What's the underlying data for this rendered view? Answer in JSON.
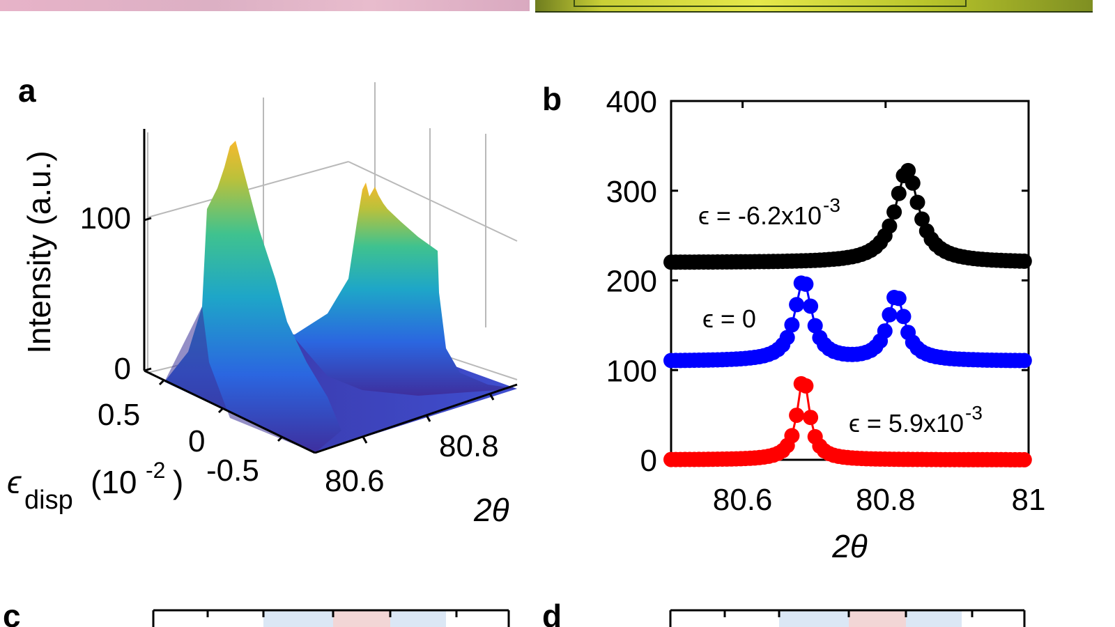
{
  "panel_labels": {
    "a": "a",
    "b": "b",
    "c": "c",
    "d": "d"
  },
  "chart_data": [
    {
      "type": "surface3d",
      "panel": "a",
      "zlabel": "Intensity (a.u.)",
      "ylabel_symbol": "ϵ",
      "ylabel_sub": "disp",
      "ylabel_unit_open": "(10",
      "ylabel_unit_exp": "-2",
      "ylabel_unit_close": ")",
      "xlabel": "2θ",
      "z_ticks": [
        "0",
        "100"
      ],
      "y_ticks": [
        "0.5",
        "0",
        "-0.5"
      ],
      "x_ticks": [
        "80.6",
        "80.8"
      ],
      "colormap": [
        "#3e2f9e",
        "#2b66e0",
        "#1ea6c8",
        "#3fc28f",
        "#bcc13a",
        "#f5b92e"
      ],
      "x": [
        80.5,
        81.0
      ],
      "y": [
        -0.6,
        0.6
      ],
      "zlim": [
        0,
        150
      ],
      "ridges": [
        {
          "peak_2theta": 80.68,
          "peak_intensity": 145
        },
        {
          "peak_2theta": 80.82,
          "peak_intensity": 120
        }
      ]
    },
    {
      "type": "scatter",
      "panel": "b",
      "xlabel": "2θ",
      "ylabel": "",
      "xlim": [
        80.5,
        81.0
      ],
      "ylim": [
        0,
        400
      ],
      "x_ticks": [
        "80.6",
        "80.8",
        "81"
      ],
      "y_ticks": [
        "0",
        "100",
        "200",
        "300",
        "400"
      ],
      "grid": false,
      "series": [
        {
          "name": "ϵ = -6.2x10",
          "exp": "-3",
          "color": "#000000",
          "baseline": 220,
          "peaks": [
            {
              "center": 80.83,
              "amplitude": 103,
              "width": 0.025
            }
          ]
        },
        {
          "name": "ϵ = 0",
          "exp": "",
          "color": "#0000ff",
          "baseline": 110,
          "peaks": [
            {
              "center": 80.685,
              "amplitude": 90,
              "width": 0.018
            },
            {
              "center": 80.815,
              "amplitude": 73,
              "width": 0.018
            }
          ]
        },
        {
          "name": "ϵ = 5.9x10",
          "exp": "-3",
          "color": "#ff0000",
          "baseline": 0,
          "peaks": [
            {
              "center": 80.685,
              "amplitude": 92,
              "width": 0.013
            }
          ]
        }
      ]
    }
  ]
}
